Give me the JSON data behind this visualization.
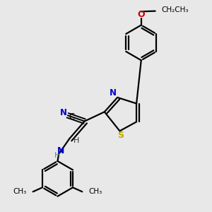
{
  "bg_color": "#e8e8e8",
  "atom_colors": {
    "C": "#000000",
    "N": "#0000cc",
    "S": "#bbaa00",
    "O": "#cc0000",
    "H": "#558888"
  },
  "bond_color": "#000000",
  "bond_width": 1.6,
  "figsize": [
    3.0,
    3.0
  ],
  "dpi": 100,
  "xlim": [
    0.05,
    0.95
  ],
  "ylim": [
    0.05,
    0.95
  ]
}
